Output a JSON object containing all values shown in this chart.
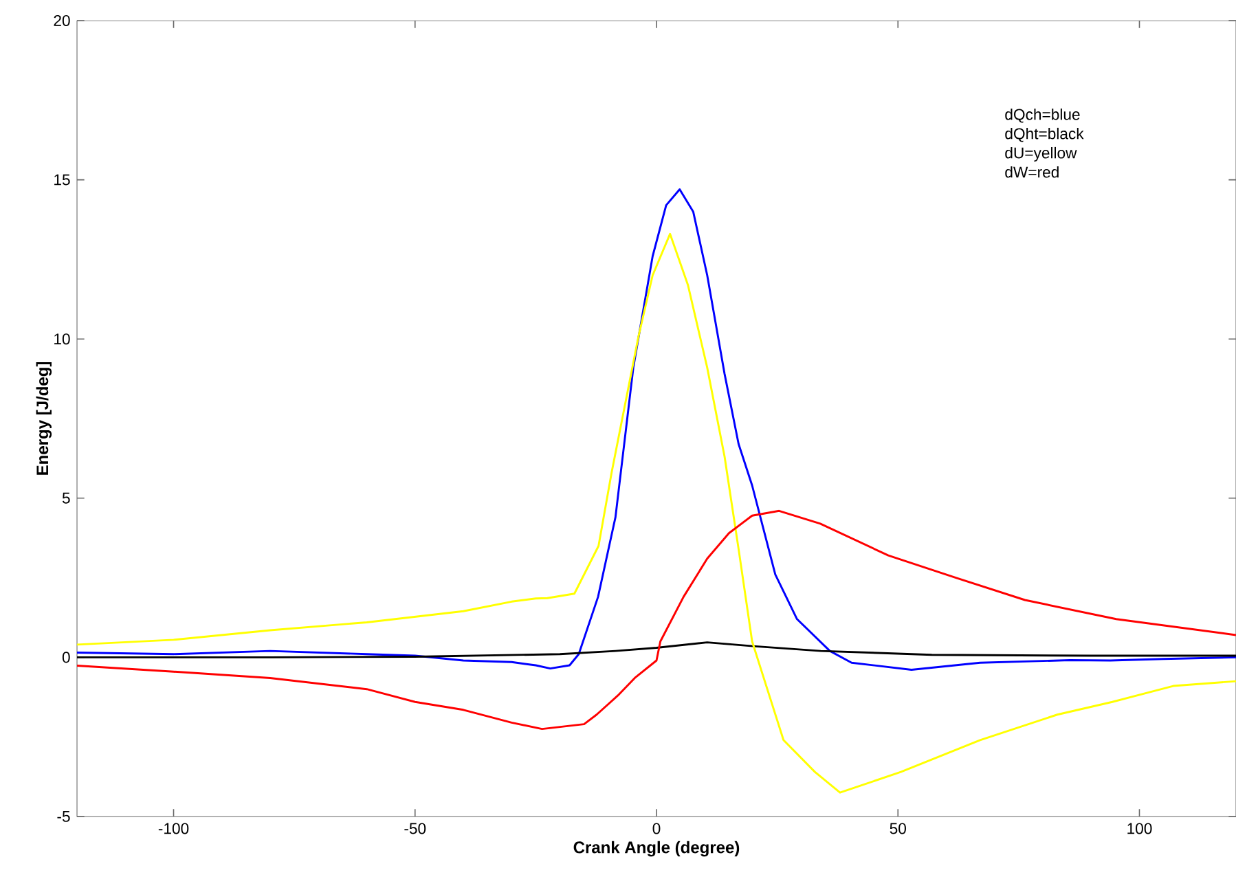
{
  "chart_data": {
    "type": "line",
    "xlabel": "Crank Angle (degree)",
    "ylabel": "Energy [J/deg]",
    "xlim": [
      -120,
      120
    ],
    "ylim": [
      -5,
      20
    ],
    "xticks": [
      -100,
      -50,
      0,
      50,
      100
    ],
    "yticks": [
      -5,
      0,
      5,
      10,
      15,
      20
    ],
    "annotations": [
      "dQch=blue",
      "dQht=black",
      "dU=yellow",
      "dW=red"
    ],
    "series": [
      {
        "color": "#0000ff",
        "x": [
          -120,
          -100,
          -80,
          -60,
          -50,
          -40,
          -30,
          -25,
          -22,
          -18,
          -16.1,
          -12.1,
          -8.5,
          -4.8,
          -0.8,
          2,
          4.8,
          7.6,
          10.5,
          14.1,
          17,
          19.8,
          24.6,
          29.1,
          35.9,
          40.4,
          52.8,
          67,
          85.6,
          94,
          105,
          120
        ],
        "values": [
          0.15,
          0.1,
          0.2,
          0.1,
          0.05,
          -0.1,
          -0.15,
          -0.25,
          -0.35,
          -0.25,
          0.1,
          1.9,
          4.4,
          9.1,
          12.6,
          14.2,
          14.7,
          14.0,
          12.0,
          8.9,
          6.7,
          5.4,
          2.6,
          1.2,
          0.2,
          -0.17,
          -0.39,
          -0.17,
          -0.09,
          -0.1,
          -0.05,
          0.0
        ]
      },
      {
        "color": "#000000",
        "x": [
          -120,
          -80,
          -50,
          -20,
          -8.5,
          0,
          10.5,
          20,
          34,
          57,
          90,
          120
        ],
        "values": [
          0.0,
          0.0,
          0.02,
          0.1,
          0.2,
          0.3,
          0.47,
          0.35,
          0.2,
          0.08,
          0.05,
          0.05
        ]
      },
      {
        "color": "#ffff00",
        "x": [
          -120,
          -100,
          -80,
          -60,
          -40,
          -30,
          -25,
          -22.6,
          -17,
          -12,
          -9.3,
          -3.7,
          -0.8,
          2.8,
          6.5,
          10.5,
          14.1,
          17,
          19.8,
          26.3,
          32.8,
          38,
          50.6,
          67,
          83,
          94.4,
          107,
          120
        ],
        "values": [
          0.4,
          0.55,
          0.85,
          1.1,
          1.45,
          1.75,
          1.85,
          1.86,
          2.0,
          3.5,
          5.8,
          10.1,
          12.0,
          13.3,
          11.7,
          9.1,
          6.3,
          3.4,
          0.5,
          -2.6,
          -3.6,
          -4.25,
          -3.6,
          -2.6,
          -1.8,
          -1.4,
          -0.9,
          -0.75
        ]
      },
      {
        "color": "#ff0000",
        "x": [
          -120,
          -100,
          -80,
          -60,
          -50,
          -40,
          -30,
          -23.7,
          -15,
          -12.4,
          -8,
          -4.5,
          0,
          0.8,
          5.6,
          10.5,
          15,
          19.8,
          25.4,
          33.9,
          48,
          62,
          76.3,
          95.2,
          120
        ],
        "values": [
          -0.26,
          -0.45,
          -0.65,
          -1.0,
          -1.4,
          -1.65,
          -2.05,
          -2.25,
          -2.1,
          -1.8,
          -1.2,
          -0.65,
          -0.1,
          0.5,
          1.9,
          3.1,
          3.9,
          4.45,
          4.6,
          4.2,
          3.2,
          2.5,
          1.8,
          1.2,
          0.7
        ]
      }
    ]
  }
}
